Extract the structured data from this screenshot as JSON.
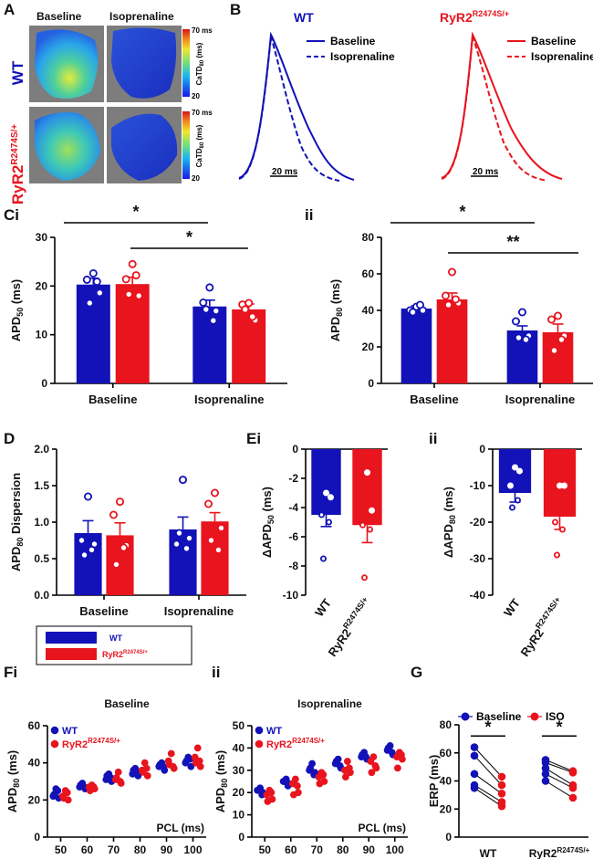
{
  "colors": {
    "wt": "#1212b8",
    "mut": "#e8141e",
    "axis": "#000000",
    "map_bg": "#7d7d7d"
  },
  "panels": {
    "A": "A",
    "B": "B",
    "C": "C",
    "Ci_suffix": "i",
    "Cii": "ii",
    "D": "D",
    "E": "E",
    "Ei_suffix": "i",
    "Eii": "ii",
    "F": "F",
    "Fi_suffix": "i",
    "Fii": "ii",
    "G": "G"
  },
  "panel_a": {
    "col_titles": [
      "Baseline",
      "Isoprenaline"
    ],
    "row_wt": "WT",
    "row_mut": "RyR2",
    "row_mut_sup": "R2474S/+",
    "colorbar_top": "70 ms",
    "colorbar_bottom": "20",
    "colorbar_label": "CaTD",
    "colorbar_label_sub": "80",
    "colorbar_label_tail": " (ms)"
  },
  "panel_b": {
    "wt_title": "WT",
    "mut_title": "RyR2",
    "mut_title_sup": "R2474S/+",
    "legend": [
      "Baseline",
      "Isoprenaline"
    ],
    "scale_bar": "20 ms"
  },
  "chart_data": [
    {
      "id": "Ci",
      "type": "bar",
      "categories": [
        "Baseline",
        "Isoprenaline"
      ],
      "ylabel_main": "APD",
      "ylabel_sub": "50",
      "ylabel_tail": " (ms)",
      "ylim": [
        0,
        30
      ],
      "yticks": [
        "0",
        "10",
        "20",
        "30"
      ],
      "series": [
        {
          "name": "WT",
          "values": [
            20.3,
            15.8
          ],
          "sem": [
            1.3,
            1.3
          ],
          "points": [
            [
              22.6,
              21.3,
              18.6,
              16.5,
              20.9
            ],
            [
              19.7,
              16.6,
              14.9,
              15.2,
              12.9
            ]
          ]
        },
        {
          "name": "RyR2 R2474S/+",
          "values": [
            20.4,
            15.2
          ],
          "sem": [
            1.4,
            1.1
          ],
          "points": [
            [
              24.5,
              21.4,
              18.0,
              18.3,
              22.2
            ],
            [
              16.5,
              16.2,
              13.0,
              15.2,
              13.7
            ]
          ]
        }
      ],
      "significance": [
        {
          "label": "*"
        },
        {
          "label": "*"
        }
      ]
    },
    {
      "id": "Cii",
      "type": "bar",
      "categories": [
        "Baseline",
        "Isoprenaline"
      ],
      "ylabel_main": "APD",
      "ylabel_sub": "80",
      "ylabel_tail": " (ms)",
      "ylim": [
        0,
        80
      ],
      "yticks": [
        "0",
        "20",
        "40",
        "60",
        "80"
      ],
      "series": [
        {
          "name": "WT",
          "values": [
            41,
            29
          ],
          "sem": [
            1.5,
            2.5
          ],
          "points": [
            [
              42,
              40,
              40,
              39,
              43
            ],
            [
              39,
              34,
              26,
              25,
              24
            ]
          ]
        },
        {
          "name": "RyR2 R2474S/+",
          "values": [
            46,
            28
          ],
          "sem": [
            3.5,
            4.5
          ],
          "points": [
            [
              61,
              48,
              44,
              43,
              46
            ],
            [
              37,
              35,
              26,
              18,
              24
            ]
          ]
        }
      ],
      "significance": [
        {
          "label": "*"
        },
        {
          "label": "**"
        }
      ]
    },
    {
      "id": "D",
      "type": "bar",
      "categories": [
        "Baseline",
        "Isoprenaline"
      ],
      "ylabel_main": "APD",
      "ylabel_sub": "80",
      "ylabel_tail": " Dispersion",
      "ylim": [
        0,
        2.0
      ],
      "yticks": [
        "0.0",
        "0.5",
        "1.0",
        "1.5",
        "2.0"
      ],
      "series": [
        {
          "name": "WT",
          "values": [
            0.85,
            0.9
          ],
          "sem": [
            0.17,
            0.17
          ],
          "points": [
            [
              1.35,
              0.75,
              0.7,
              0.55,
              0.62
            ],
            [
              1.58,
              0.7,
              0.78,
              0.85,
              0.64
            ]
          ]
        },
        {
          "name": "RyR2 R2474S/+",
          "values": [
            0.82,
            1.01
          ],
          "sem": [
            0.17,
            0.12
          ],
          "points": [
            [
              1.28,
              1.1,
              0.68,
              0.42,
              0.65
            ],
            [
              1.4,
              1.25,
              0.92,
              0.75,
              0.62
            ]
          ]
        }
      ]
    },
    {
      "id": "Ei",
      "type": "bar",
      "categories": [
        "WT",
        "RyR2R2474S/+"
      ],
      "cat_main": [
        "WT",
        "RyR2"
      ],
      "cat_sup": [
        "",
        "R2474S/+"
      ],
      "ylabel_main": "ΔAPD",
      "ylabel_sub": "50",
      "ylabel_tail": " (ms)",
      "ylim": [
        -10,
        0
      ],
      "yticks": [
        "0",
        "-2",
        "-4",
        "-6",
        "-8",
        "-10"
      ],
      "values": [
        -4.5,
        -5.2
      ],
      "sem": [
        0.8,
        1.2
      ],
      "points": [
        [
          -3.0,
          -3.3,
          -4.5,
          -5.0,
          -7.5
        ],
        [
          -1.6,
          -4.2,
          -5.2,
          -5.5,
          -8.8
        ]
      ]
    },
    {
      "id": "Eii",
      "type": "bar",
      "categories": [
        "WT",
        "RyR2R2474S/+"
      ],
      "cat_main": [
        "WT",
        "RyR2"
      ],
      "cat_sup": [
        "",
        "R2474S/+"
      ],
      "ylabel_main": "ΔAPD",
      "ylabel_sub": "80",
      "ylabel_tail": " (ms)",
      "ylim": [
        -40,
        0
      ],
      "yticks": [
        "0",
        "-10",
        "-20",
        "-30",
        "-40"
      ],
      "values": [
        -12,
        -18.5
      ],
      "sem": [
        2.5,
        3.5
      ],
      "points": [
        [
          -5,
          -6,
          -10,
          -14,
          -16
        ],
        [
          -10,
          -10,
          -20,
          -22,
          -29
        ]
      ]
    },
    {
      "id": "Fi",
      "type": "scatter",
      "title": "Baseline",
      "legend": [
        "WT",
        "RyR2"
      ],
      "legend_sup": [
        "",
        "R2474S/+"
      ],
      "ylabel_main": "APD",
      "ylabel_sub": "80",
      "ylabel_tail": " (ms)",
      "xlabel": "PCL (ms)",
      "x": [
        50,
        60,
        70,
        80,
        90,
        100
      ],
      "xticks": [
        "50",
        "60",
        "70",
        "80",
        "90",
        "100"
      ],
      "ylim": [
        0,
        60
      ],
      "yticks": [
        "0",
        "20",
        "40",
        "60"
      ],
      "series": [
        {
          "name": "WT",
          "points": [
            [
              26,
              22,
              21,
              23,
              25
            ],
            [
              29,
              27,
              26,
              28,
              27
            ],
            [
              34,
              31,
              30,
              33,
              32
            ],
            [
              37,
              34,
              33,
              36,
              35
            ],
            [
              40,
              38,
              36,
              39,
              38
            ],
            [
              43,
              40,
              38,
              41,
              42
            ]
          ]
        },
        {
          "name": "RyR2 R2474S/+",
          "points": [
            [
              25,
              22,
              20,
              21,
              24
            ],
            [
              28,
              27,
              26,
              25,
              27
            ],
            [
              35,
              31,
              29,
              32,
              30
            ],
            [
              40,
              36,
              33,
              35,
              37
            ],
            [
              45,
              41,
              37,
              39,
              38
            ],
            [
              48,
              43,
              38,
              40,
              41
            ]
          ]
        }
      ]
    },
    {
      "id": "Fii",
      "type": "scatter",
      "title": "Isoprenaline",
      "legend": [
        "WT",
        "RyR2"
      ],
      "legend_sup": [
        "",
        "R2474S/+"
      ],
      "ylabel_main": "APD",
      "ylabel_sub": "80",
      "ylabel_tail": " (ms)",
      "xlabel": "PCL (ms)",
      "x": [
        50,
        60,
        70,
        80,
        90,
        100
      ],
      "xticks": [
        "50",
        "60",
        "70",
        "80",
        "90",
        "100"
      ],
      "ylim": [
        0,
        50
      ],
      "yticks": [
        "0",
        "10",
        "20",
        "30",
        "40",
        "50"
      ],
      "series": [
        {
          "name": "WT",
          "points": [
            [
              22,
              21,
              20,
              21,
              19
            ],
            [
              26,
              25,
              24,
              25,
              23
            ],
            [
              33,
              30,
              29,
              31,
              28
            ],
            [
              35,
              33,
              31,
              34,
              32
            ],
            [
              38,
              36,
              35,
              37,
              36
            ],
            [
              41,
              39,
              37,
              40,
              38
            ]
          ]
        },
        {
          "name": "RyR2 R2474S/+",
          "points": [
            [
              21,
              19,
              17,
              16,
              20
            ],
            [
              26,
              24,
              20,
              19,
              23
            ],
            [
              29,
              27,
              25,
              24,
              28
            ],
            [
              34,
              30,
              29,
              27,
              31
            ],
            [
              36,
              34,
              31,
              29,
              32
            ],
            [
              38,
              36,
              35,
              31,
              37
            ]
          ]
        }
      ]
    },
    {
      "id": "G",
      "type": "scatter",
      "ylabel": "ERP (ms)",
      "legend": [
        "Baseline",
        "ISO"
      ],
      "categories": [
        "WT",
        "RyR2R2474S/+"
      ],
      "cat_main": [
        "WT",
        "RyR2"
      ],
      "cat_sup": [
        "",
        "R2474S/+"
      ],
      "ylim": [
        0,
        80
      ],
      "yticks": [
        "0",
        "20",
        "40",
        "60",
        "80"
      ],
      "pairs": [
        [
          [
            64,
            43
          ],
          [
            58,
            37
          ],
          [
            45,
            31
          ],
          [
            37,
            25
          ],
          [
            35,
            22
          ]
        ],
        [
          [
            55,
            47
          ],
          [
            53,
            46
          ],
          [
            49,
            37
          ],
          [
            45,
            35
          ],
          [
            40,
            28
          ]
        ]
      ],
      "significance": [
        "*",
        "*"
      ]
    }
  ],
  "legend_box": {
    "items": [
      "WT",
      "RyR2"
    ],
    "items_sup": [
      "",
      "R2474S/+"
    ]
  }
}
